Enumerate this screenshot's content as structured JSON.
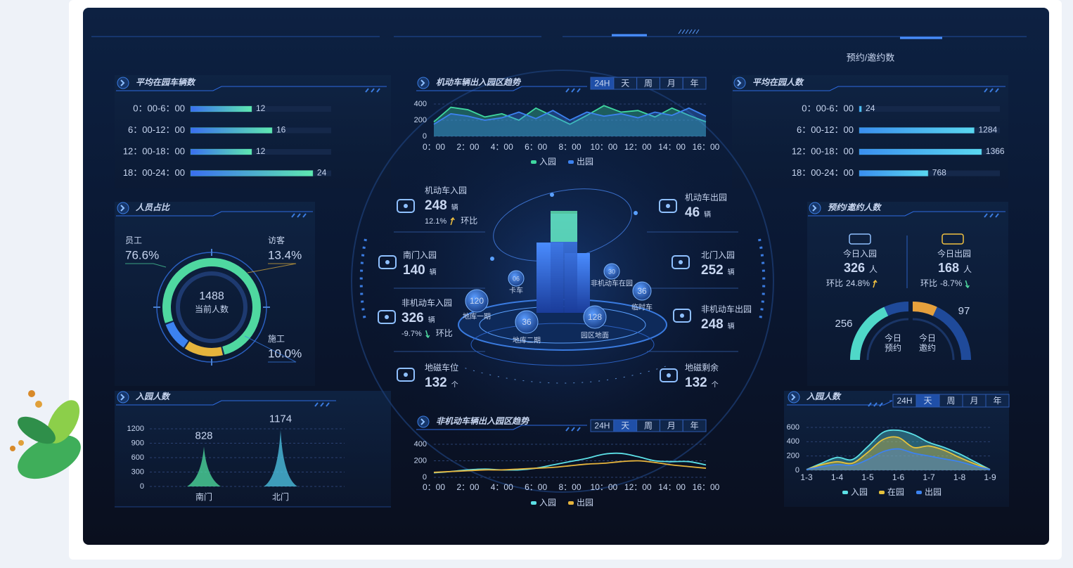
{
  "header": {
    "label": "预约/邀约数"
  },
  "chart_data": [
    {
      "type": "bar",
      "orientation": "horizontal",
      "title": "平均在园车辆数",
      "categories": [
        "0：00-6：00",
        "6：00-12：00",
        "12：00-18：00",
        "18：00-24：00"
      ],
      "values": [
        12,
        16,
        12,
        24
      ],
      "color": "#4fd8b0"
    },
    {
      "type": "area",
      "title": "机动车辆出入园区趋势",
      "tabs": [
        "24H",
        "天",
        "周",
        "月",
        "年"
      ],
      "active_tab": "24H",
      "categories": [
        "0：00",
        null,
        "2：00",
        null,
        "4：00",
        null,
        "6：00",
        null,
        "8：00",
        null,
        "10：00",
        null,
        "12：00",
        null,
        "14：00",
        null,
        "16：00"
      ],
      "series": [
        {
          "name": "入园",
          "color": "#3fd8a0",
          "values": [
            180,
            360,
            330,
            240,
            280,
            200,
            350,
            250,
            150,
            260,
            380,
            300,
            320,
            240,
            350,
            260,
            180
          ]
        },
        {
          "name": "出园",
          "color": "#3c82f0",
          "values": [
            150,
            280,
            250,
            200,
            230,
            300,
            220,
            320,
            200,
            300,
            250,
            280,
            230,
            300,
            260,
            350,
            250
          ]
        }
      ],
      "ylim": [
        0,
        400
      ],
      "yticks": [
        0,
        200,
        400
      ]
    },
    {
      "type": "bar",
      "orientation": "horizontal",
      "title": "平均在园人数",
      "categories": [
        "0：00-6：00",
        "6：00-12：00",
        "12：00-18：00",
        "18：00-24：00"
      ],
      "values": [
        24,
        1284,
        1366,
        768
      ],
      "color": "#4fc8f0"
    },
    {
      "type": "pie",
      "title": "人员占比",
      "categories": [
        "员工",
        "访客",
        "施工"
      ],
      "values": [
        76.6,
        13.4,
        10.0
      ],
      "value_labels": [
        "76.6%",
        "13.4%",
        "10.0%"
      ],
      "colors": [
        "#4fd8a0",
        "#e6b43c",
        "#3c82f0"
      ],
      "center_value": 1488,
      "center_label": "当前人数"
    },
    {
      "type": "bar",
      "orientation": "vertical",
      "title": "入园人数",
      "categories": [
        "南门",
        "北门"
      ],
      "values": [
        828,
        1174
      ],
      "colors": [
        "#4fe0a0",
        "#4fc8e8"
      ],
      "ylim": [
        0,
        1200
      ],
      "yticks": [
        0,
        300,
        600,
        900,
        1200
      ]
    },
    {
      "type": "line",
      "title": "非机动车辆出入园区趋势",
      "tabs": [
        "24H",
        "天",
        "周",
        "月",
        "年"
      ],
      "active_tab": "天",
      "categories": [
        "0：00",
        null,
        "2：00",
        null,
        "4：00",
        null,
        "6：00",
        null,
        "8：00",
        null,
        "10：00",
        null,
        "12：00",
        null,
        "14：00",
        null,
        "16：00"
      ],
      "series": [
        {
          "name": "入园",
          "color": "#5ce0e6",
          "values": [
            55,
            70,
            90,
            100,
            90,
            90,
            110,
            150,
            190,
            230,
            280,
            290,
            250,
            200,
            190,
            190,
            150
          ]
        },
        {
          "name": "出园",
          "color": "#e6b43c",
          "values": [
            60,
            70,
            80,
            90,
            90,
            100,
            110,
            120,
            140,
            160,
            170,
            190,
            200,
            180,
            150,
            130,
            110
          ]
        }
      ],
      "ylim": [
        0,
        400
      ],
      "yticks": [
        0,
        200,
        400
      ]
    },
    {
      "type": "area",
      "title": "入园人数",
      "tabs": [
        "24H",
        "天",
        "周",
        "月",
        "年"
      ],
      "active_tab": "天",
      "categories": [
        "1-3",
        null,
        "1-4",
        null,
        "1-5",
        null,
        "1-6",
        null,
        "1-7",
        null,
        "1-8",
        null,
        "1-9"
      ],
      "series": [
        {
          "name": "入园",
          "color": "#5ce0e6",
          "values": [
            10,
            100,
            180,
            150,
            330,
            530,
            560,
            500,
            390,
            320,
            230,
            120,
            10
          ]
        },
        {
          "name": "在园",
          "color": "#e6c23c",
          "values": [
            10,
            80,
            120,
            100,
            250,
            430,
            460,
            320,
            340,
            280,
            180,
            90,
            10
          ]
        },
        {
          "name": "出园",
          "color": "#3c82f0",
          "values": [
            10,
            50,
            80,
            70,
            150,
            260,
            300,
            240,
            200,
            160,
            120,
            60,
            10
          ]
        }
      ],
      "ylim": [
        0,
        600
      ],
      "yticks": [
        0,
        200,
        400,
        600
      ]
    }
  ],
  "center": {
    "vehicle_stats": [
      {
        "label": "机动车入园",
        "value": 248,
        "unit": "辆",
        "change": "12.1%",
        "compare_label": "环比"
      },
      {
        "label": "机动车出园",
        "value": 46,
        "unit": "辆"
      },
      {
        "label": "南门入园",
        "value": 140,
        "unit": "辆"
      },
      {
        "label": "北门入园",
        "value": 252,
        "unit": "辆"
      },
      {
        "label": "非机动车入园",
        "value": 326,
        "unit": "辆",
        "change": "-9.7%",
        "compare_label": "环比"
      },
      {
        "label": "非机动车出园",
        "value": 248,
        "unit": "辆"
      },
      {
        "label": "地磁车位",
        "value": 132,
        "unit": "个"
      },
      {
        "label": "地磁剩余",
        "value": 132,
        "unit": "个"
      }
    ],
    "bubbles": [
      {
        "value": 120,
        "label": "地库一期"
      },
      {
        "value": 36,
        "label": "地库二期"
      },
      {
        "value": 128,
        "label": "园区地面"
      },
      {
        "value": 6,
        "value_label": "06",
        "label": "卡车"
      },
      {
        "value": 30,
        "label": "非机动车在园"
      },
      {
        "value": 36,
        "label": "临时车"
      }
    ]
  },
  "reservation": {
    "title": "预约/邀约人数",
    "flows": [
      {
        "label": "今日入园",
        "value": 326,
        "unit": "人",
        "compare_label": "环比",
        "change": "24.8%"
      },
      {
        "label": "今日出园",
        "value": 168,
        "unit": "人",
        "compare_label": "环比",
        "change": "-8.7%"
      }
    ],
    "gauges": [
      {
        "value": 256,
        "label": [
          "今日",
          "预约"
        ],
        "color": "#4fd8c8"
      },
      {
        "value": 97,
        "label": [
          "今日",
          "邀约"
        ],
        "color": "#e6a03c"
      }
    ]
  }
}
